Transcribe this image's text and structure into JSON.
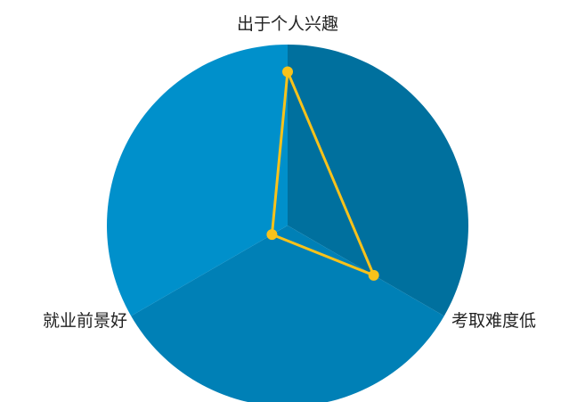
{
  "chart_data": {
    "type": "radar",
    "indicators": [
      {
        "name": "出于个人兴趣",
        "max": 100
      },
      {
        "name": "考取难度低",
        "max": 100
      },
      {
        "name": "就业前景好",
        "max": 100
      }
    ],
    "series": [
      {
        "values": [
          85,
          55,
          10
        ]
      }
    ],
    "sector_colors": [
      "#00709E",
      "#0080B6",
      "#0090CB"
    ],
    "series_color": "#F9C21A",
    "grid": false,
    "legend": "none"
  }
}
